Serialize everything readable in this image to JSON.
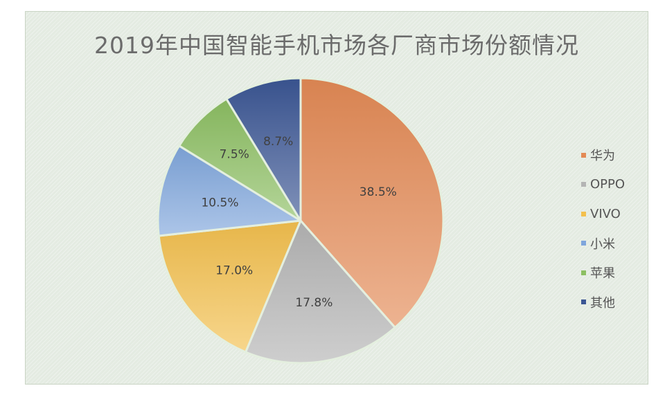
{
  "chart_data": {
    "type": "pie",
    "title": "2019年中国智能手机市场各厂商市场份额情况",
    "categories": [
      "华为",
      "OPPO",
      "VIVO",
      "小米",
      "苹果",
      "其他"
    ],
    "values": [
      38.5,
      17.8,
      17.0,
      10.5,
      7.5,
      8.7
    ],
    "value_labels": [
      "38.5%",
      "17.8%",
      "17.0%",
      "10.5%",
      "7.5%",
      "8.7%"
    ],
    "colors": [
      "#e38a55",
      "#b4b4b4",
      "#f3c04e",
      "#7fa6dc",
      "#8cbf62",
      "#3b5694"
    ],
    "start_angle": "12 o'clock",
    "direction": "clockwise",
    "legend_position": "right"
  }
}
